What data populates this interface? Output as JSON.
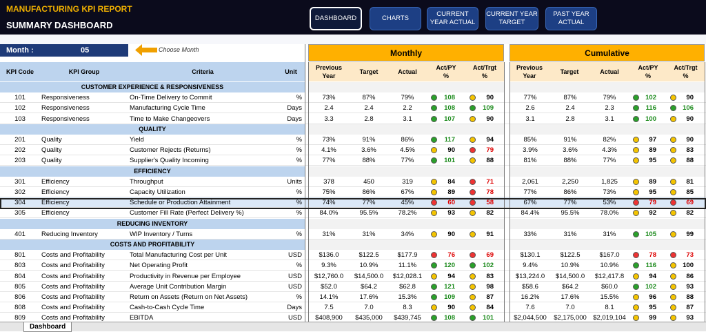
{
  "header": {
    "title": "MANUFACTURING KPI REPORT",
    "subtitle": "SUMMARY DASHBOARD"
  },
  "nav": [
    {
      "label": "DASHBOARD",
      "active": true
    },
    {
      "label": "CHARTS",
      "active": false
    },
    {
      "label": "CURRENT\nYEAR ACTUAL",
      "active": false
    },
    {
      "label": "CURRENT YEAR\nTARGET",
      "active": false
    },
    {
      "label": "PAST YEAR\nACTUAL",
      "active": false
    }
  ],
  "month": {
    "label": "Month :",
    "value": "05",
    "hint": "Choose  Month"
  },
  "groups": {
    "monthly": "Monthly",
    "cumulative": "Cumulative"
  },
  "headers": {
    "left": [
      "KPI Code",
      "KPI Group",
      "Criteria",
      "Unit"
    ],
    "metric": [
      "Previous\nYear",
      "Target",
      "Actual",
      "Act/PY\n%",
      "Act/Trgt\n%"
    ]
  },
  "colors": {
    "green": "#2aa02a",
    "yellow": "#f4c400",
    "red": "#e33",
    "accent": "#ffb000"
  },
  "rows": [
    {
      "section": "CUSTOMER EXPERIENCE & RESPONSIVENESS"
    },
    {
      "code": "101",
      "group": "Responsiveness",
      "criteria": "On-Time Delivery to Commit",
      "unit": "%",
      "m": [
        "73%",
        "87%",
        "79%"
      ],
      "mpy": [
        108,
        "g"
      ],
      "mtg": [
        90,
        "y"
      ],
      "c": [
        "77%",
        "87%",
        "79%"
      ],
      "cpy": [
        102,
        "g"
      ],
      "ctg": [
        90,
        "y"
      ]
    },
    {
      "code": "102",
      "group": "Responsiveness",
      "criteria": "Manufacturing Cycle Time",
      "unit": "Days",
      "m": [
        "2.4",
        "2.4",
        "2.2"
      ],
      "mpy": [
        108,
        "g"
      ],
      "mtg": [
        109,
        "g"
      ],
      "c": [
        "2.6",
        "2.4",
        "2.3"
      ],
      "cpy": [
        116,
        "g"
      ],
      "ctg": [
        106,
        "g"
      ]
    },
    {
      "code": "103",
      "group": "Responsiveness",
      "criteria": "Time to Make Changeovers",
      "unit": "Days",
      "m": [
        "3.3",
        "2.8",
        "3.1"
      ],
      "mpy": [
        107,
        "g"
      ],
      "mtg": [
        90,
        "y"
      ],
      "c": [
        "3.1",
        "2.8",
        "3.1"
      ],
      "cpy": [
        100,
        "g"
      ],
      "ctg": [
        90,
        "y"
      ]
    },
    {
      "section": "QUALITY"
    },
    {
      "code": "201",
      "group": "Quality",
      "criteria": "Yield",
      "unit": "%",
      "m": [
        "73%",
        "91%",
        "86%"
      ],
      "mpy": [
        117,
        "g"
      ],
      "mtg": [
        94,
        "y"
      ],
      "c": [
        "85%",
        "91%",
        "82%"
      ],
      "cpy": [
        97,
        "y"
      ],
      "ctg": [
        90,
        "y"
      ]
    },
    {
      "code": "202",
      "group": "Quality",
      "criteria": "Customer Rejects (Returns)",
      "unit": "%",
      "m": [
        "4.1%",
        "3.6%",
        "4.5%"
      ],
      "mpy": [
        90,
        "y"
      ],
      "mtg": [
        79,
        "r"
      ],
      "c": [
        "3.9%",
        "3.6%",
        "4.3%"
      ],
      "cpy": [
        89,
        "y"
      ],
      "ctg": [
        83,
        "y"
      ]
    },
    {
      "code": "203",
      "group": "Quality",
      "criteria": "Supplier's Quality Incoming",
      "unit": "%",
      "m": [
        "77%",
        "88%",
        "77%"
      ],
      "mpy": [
        101,
        "g"
      ],
      "mtg": [
        88,
        "y"
      ],
      "c": [
        "81%",
        "88%",
        "77%"
      ],
      "cpy": [
        95,
        "y"
      ],
      "ctg": [
        88,
        "y"
      ]
    },
    {
      "section": "EFFICIENCY"
    },
    {
      "code": "301",
      "group": "Efficiency",
      "criteria": "Throughput",
      "unit": "Units",
      "m": [
        "378",
        "450",
        "319"
      ],
      "mpy": [
        84,
        "y"
      ],
      "mtg": [
        71,
        "r"
      ],
      "c": [
        "2,061",
        "2,250",
        "1,825"
      ],
      "cpy": [
        89,
        "y"
      ],
      "ctg": [
        81,
        "y"
      ]
    },
    {
      "code": "302",
      "group": "Efficiency",
      "criteria": "Capacity Utilization",
      "unit": "%",
      "m": [
        "75%",
        "86%",
        "67%"
      ],
      "mpy": [
        89,
        "y"
      ],
      "mtg": [
        78,
        "r"
      ],
      "c": [
        "77%",
        "86%",
        "73%"
      ],
      "cpy": [
        95,
        "y"
      ],
      "ctg": [
        85,
        "y"
      ]
    },
    {
      "code": "304",
      "group": "Efficiency",
      "criteria": "Schedule or Production Attainment",
      "unit": "%",
      "m": [
        "74%",
        "77%",
        "45%"
      ],
      "mpy": [
        60,
        "r"
      ],
      "mtg": [
        58,
        "r"
      ],
      "c": [
        "67%",
        "77%",
        "53%"
      ],
      "cpy": [
        79,
        "r"
      ],
      "ctg": [
        69,
        "r"
      ]
    },
    {
      "code": "305",
      "group": "Efficiency",
      "criteria": "Customer Fill Rate (Perfect Delivery %)",
      "unit": "%",
      "m": [
        "84.0%",
        "95.5%",
        "78.2%"
      ],
      "mpy": [
        93,
        "y"
      ],
      "mtg": [
        82,
        "y"
      ],
      "c": [
        "84.4%",
        "95.5%",
        "78.0%"
      ],
      "cpy": [
        92,
        "y"
      ],
      "ctg": [
        82,
        "y"
      ]
    },
    {
      "section": "REDUCING INVENTORY"
    },
    {
      "code": "401",
      "group": "Reducing Inventory",
      "criteria": "WIP Inventory / Turns",
      "unit": "%",
      "m": [
        "31%",
        "31%",
        "34%"
      ],
      "mpy": [
        90,
        "y"
      ],
      "mtg": [
        91,
        "y"
      ],
      "c": [
        "33%",
        "31%",
        "31%"
      ],
      "cpy": [
        105,
        "g"
      ],
      "ctg": [
        99,
        "y"
      ]
    },
    {
      "section": "COSTS AND PROFITABILITY"
    },
    {
      "code": "801",
      "group": "Costs and Profitability",
      "criteria": "Total Manufacturing Cost per Unit",
      "unit": "USD",
      "m": [
        "$136.0",
        "$122.5",
        "$177.9"
      ],
      "mpy": [
        76,
        "r"
      ],
      "mtg": [
        69,
        "r"
      ],
      "c": [
        "$130.1",
        "$122.5",
        "$167.0"
      ],
      "cpy": [
        78,
        "r"
      ],
      "ctg": [
        73,
        "r"
      ]
    },
    {
      "code": "803",
      "group": "Costs and Profitability",
      "criteria": "Net Operating Profit",
      "unit": "%",
      "m": [
        "9.3%",
        "10.9%",
        "11.1%"
      ],
      "mpy": [
        120,
        "g"
      ],
      "mtg": [
        102,
        "g"
      ],
      "c": [
        "9.4%",
        "10.9%",
        "10.9%"
      ],
      "cpy": [
        116,
        "g"
      ],
      "ctg": [
        100,
        "y"
      ]
    },
    {
      "code": "804",
      "group": "Costs and Profitability",
      "criteria": "Productivity in Revenue per Employee",
      "unit": "USD",
      "m": [
        "$12,760.0",
        "$14,500.0",
        "$12,028.1"
      ],
      "mpy": [
        94,
        "y"
      ],
      "mtg": [
        83,
        "y"
      ],
      "c": [
        "$13,224.0",
        "$14,500.0",
        "$12,417.8"
      ],
      "cpy": [
        94,
        "y"
      ],
      "ctg": [
        86,
        "y"
      ]
    },
    {
      "code": "805",
      "group": "Costs and Profitability",
      "criteria": "Average Unit Contribution Margin",
      "unit": "USD",
      "m": [
        "$52.0",
        "$64.2",
        "$62.8"
      ],
      "mpy": [
        121,
        "g"
      ],
      "mtg": [
        98,
        "y"
      ],
      "c": [
        "$58.6",
        "$64.2",
        "$60.0"
      ],
      "cpy": [
        102,
        "g"
      ],
      "ctg": [
        93,
        "y"
      ]
    },
    {
      "code": "806",
      "group": "Costs and Profitability",
      "criteria": "Return on Assets (Return on Net Assets)",
      "unit": "%",
      "m": [
        "14.1%",
        "17.6%",
        "15.3%"
      ],
      "mpy": [
        109,
        "g"
      ],
      "mtg": [
        87,
        "y"
      ],
      "c": [
        "16.2%",
        "17.6%",
        "15.5%"
      ],
      "cpy": [
        96,
        "y"
      ],
      "ctg": [
        88,
        "y"
      ]
    },
    {
      "code": "808",
      "group": "Costs and Profitability",
      "criteria": "Cash-to-Cash Cycle Time",
      "unit": "Days",
      "m": [
        "7.5",
        "7.0",
        "8.3"
      ],
      "mpy": [
        90,
        "y"
      ],
      "mtg": [
        84,
        "y"
      ],
      "c": [
        "7.6",
        "7.0",
        "8.1"
      ],
      "cpy": [
        95,
        "y"
      ],
      "ctg": [
        87,
        "y"
      ]
    },
    {
      "code": "809",
      "group": "Costs and Profitability",
      "criteria": "EBITDA",
      "unit": "USD",
      "m": [
        "$408,900",
        "$435,000",
        "$439,745"
      ],
      "mpy": [
        108,
        "g"
      ],
      "mtg": [
        101,
        "g"
      ],
      "c": [
        "$2,044,500",
        "$2,175,000",
        "$2,019,104"
      ],
      "cpy": [
        99,
        "y"
      ],
      "ctg": [
        93,
        "y"
      ]
    }
  ],
  "sheet_tab": "Dashboard"
}
